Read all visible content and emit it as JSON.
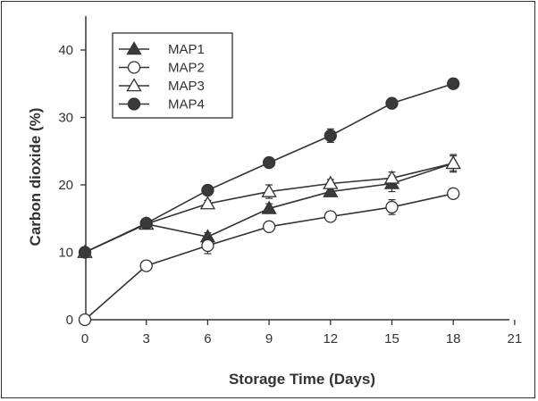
{
  "chart_data": {
    "type": "line",
    "xlabel": "Storage Time (Days)",
    "ylabel": "Carbon dioxide (%)",
    "xlim": [
      0,
      21
    ],
    "ylim": [
      0,
      45
    ],
    "x_ticks": [
      0,
      3,
      6,
      9,
      12,
      15,
      18,
      21
    ],
    "y_ticks": [
      0,
      10,
      20,
      30,
      40
    ],
    "grid": false,
    "legend_position": "top-left",
    "x": [
      0,
      3,
      6,
      9,
      12,
      15,
      18
    ],
    "series": [
      {
        "name": "MAP1",
        "marker": "filled-triangle",
        "values": [
          10,
          14.2,
          12.3,
          16.5,
          19.0,
          20.2,
          23.2
        ],
        "errors": [
          0.3,
          0.4,
          0.6,
          0.7,
          0.6,
          1.2,
          1.1
        ]
      },
      {
        "name": "MAP2",
        "marker": "open-circle",
        "values": [
          0,
          8,
          11,
          13.8,
          15.3,
          16.7,
          18.7
        ],
        "errors": [
          0.3,
          0.4,
          1.2,
          0.5,
          0.5,
          1.1,
          0.6
        ]
      },
      {
        "name": "MAP3",
        "marker": "open-triangle",
        "values": [
          10,
          14.2,
          17.2,
          19.0,
          20.2,
          21.0,
          23.2
        ],
        "errors": [
          0.3,
          0.4,
          0.5,
          1.0,
          0.6,
          0.9,
          1.3
        ]
      },
      {
        "name": "MAP4",
        "marker": "filled-circle",
        "values": [
          10,
          14.3,
          19.2,
          23.3,
          27.3,
          32.1,
          35.0
        ],
        "errors": [
          0.3,
          0.4,
          0.5,
          0.5,
          1.0,
          0.5,
          0.5
        ]
      }
    ]
  }
}
